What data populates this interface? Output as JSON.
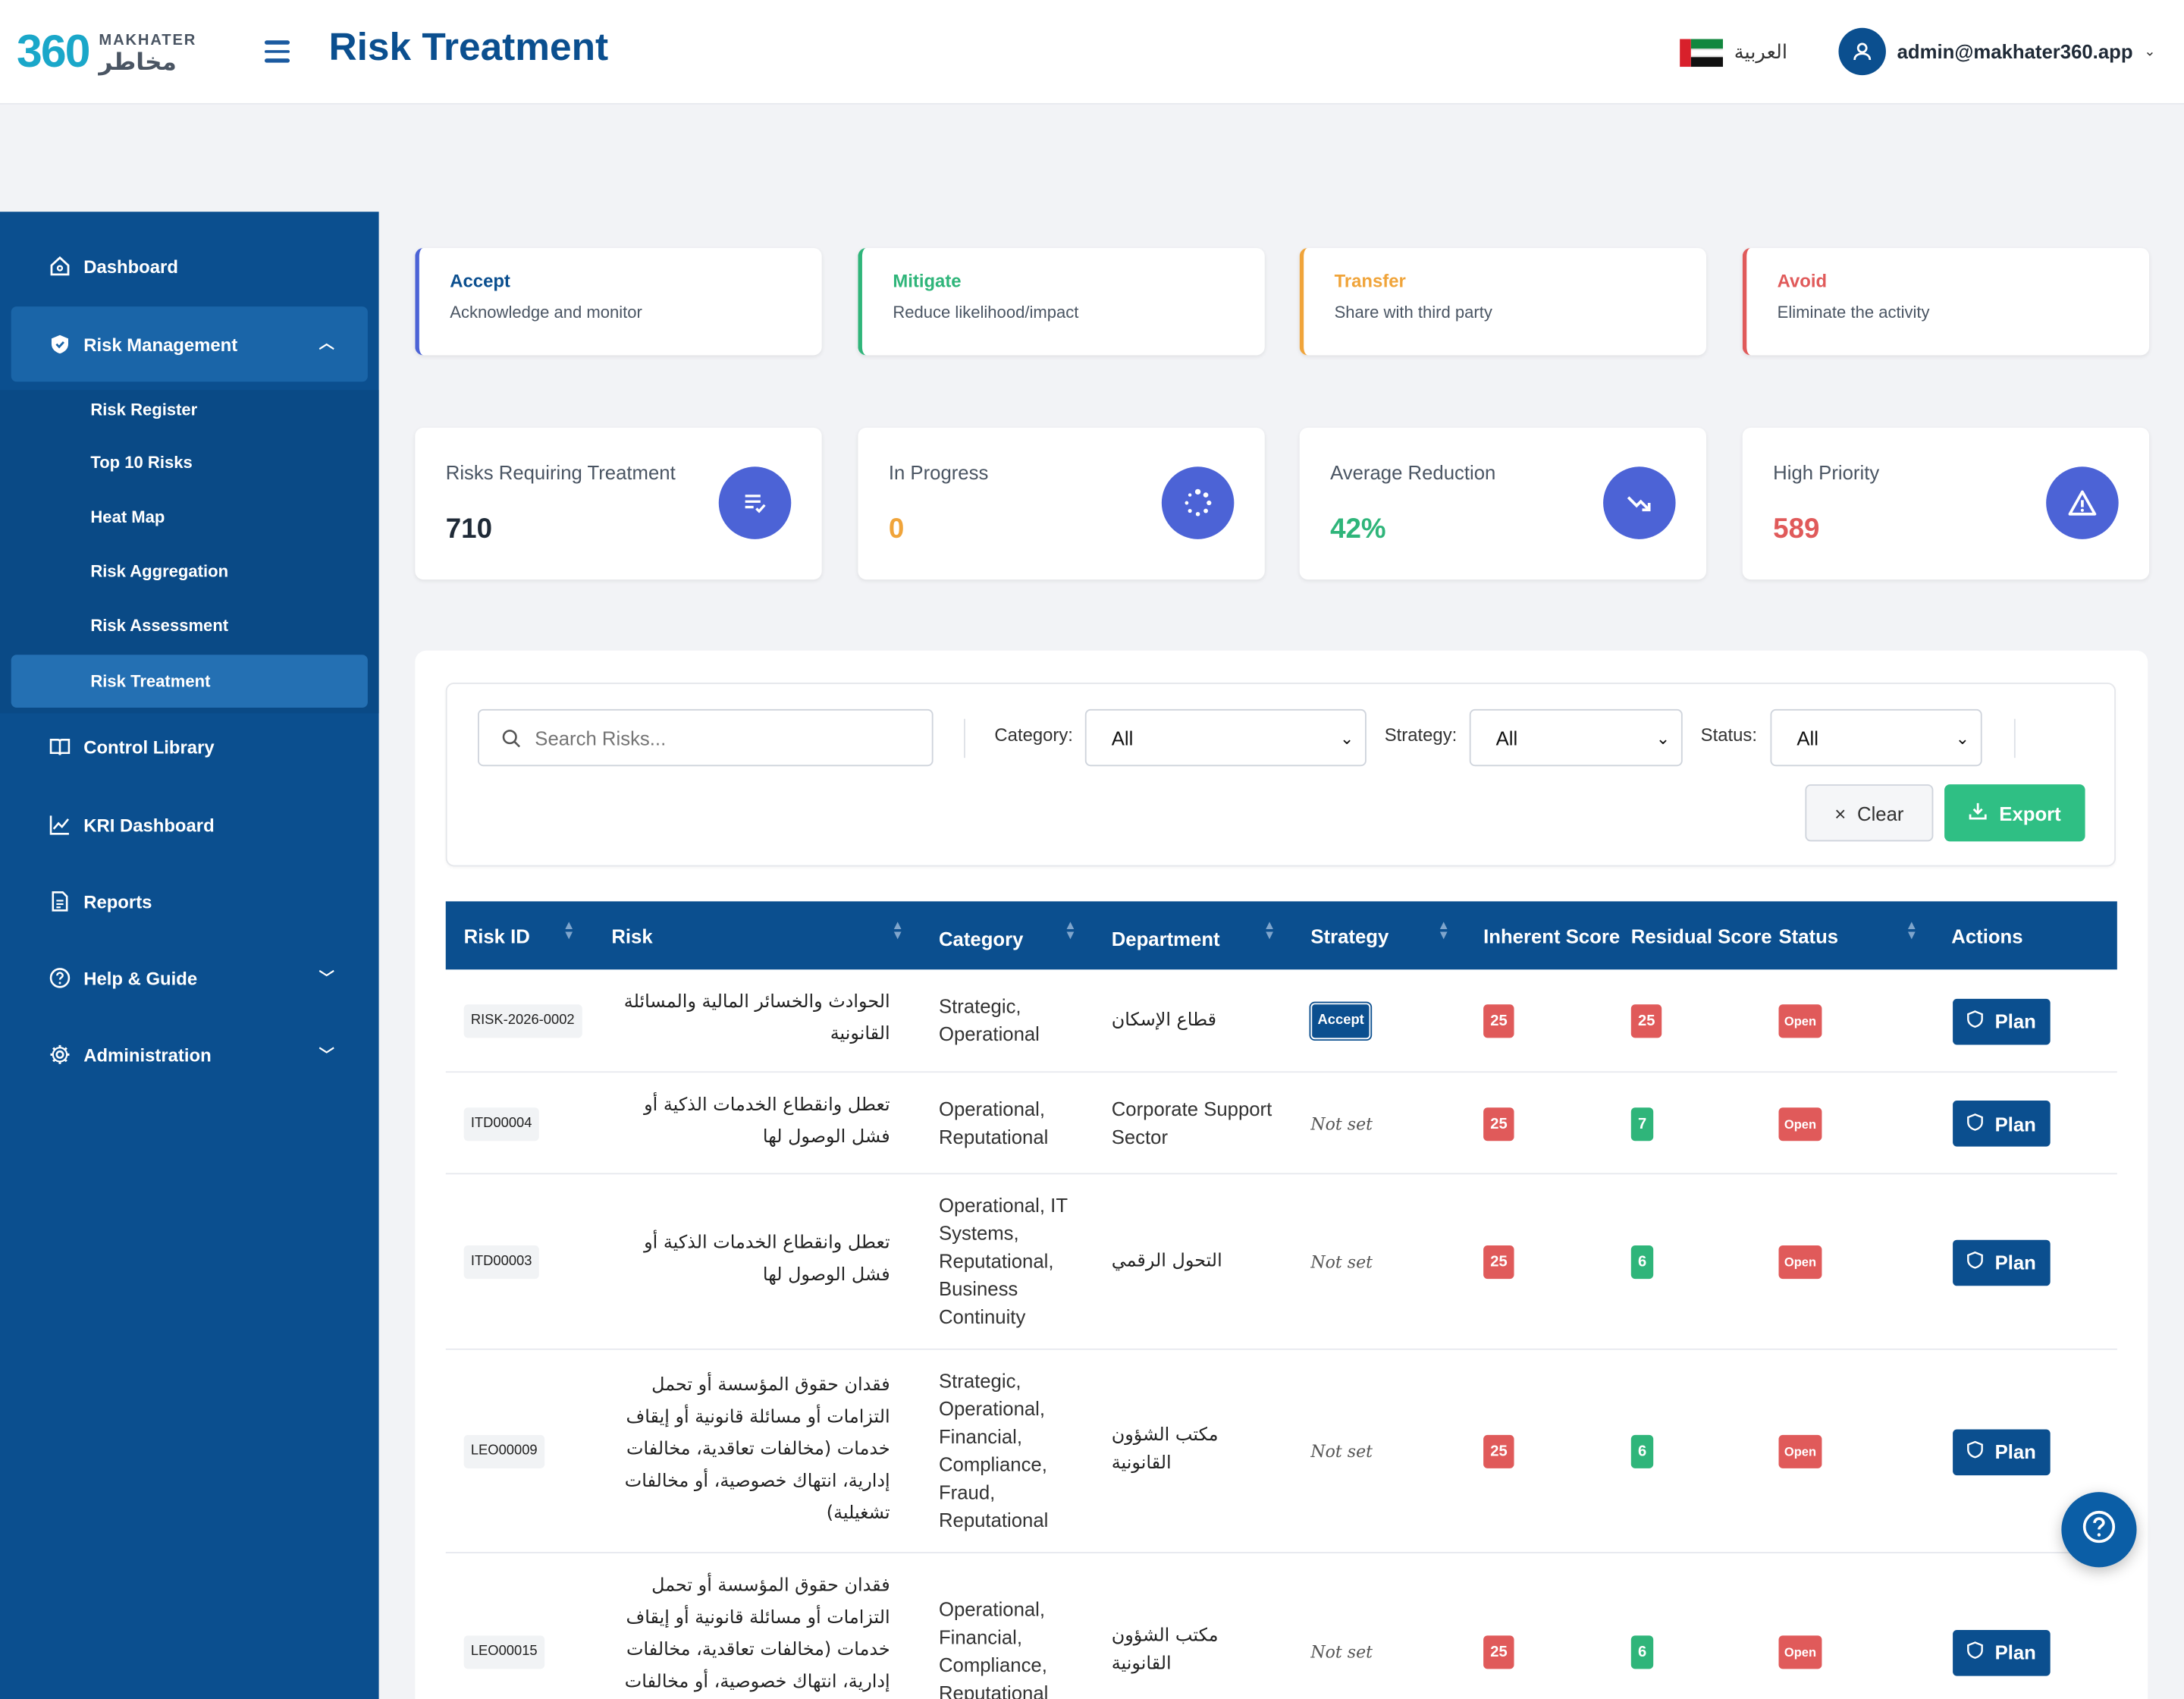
{
  "header": {
    "logo_number": "360",
    "logo_word": "MAKHATER",
    "logo_arabic": "مخاطر",
    "page_title": "Risk Treatment",
    "language": "العربية",
    "user_email": "admin@makhater360.app"
  },
  "sidebar": {
    "items": [
      {
        "label": "Dashboard",
        "icon": "home-icon"
      },
      {
        "label": "Risk Management",
        "icon": "shield-icon"
      },
      {
        "label": "Control Library",
        "icon": "book-icon"
      },
      {
        "label": "KRI Dashboard",
        "icon": "chart-line-icon"
      },
      {
        "label": "Reports",
        "icon": "document-icon"
      },
      {
        "label": "Help & Guide",
        "icon": "help-circle-icon"
      },
      {
        "label": "Administration",
        "icon": "gear-icon"
      }
    ],
    "sub_items": [
      "Risk Register",
      "Top 10 Risks",
      "Heat Map",
      "Risk Aggregation",
      "Risk Assessment",
      "Risk Treatment"
    ]
  },
  "strategies": [
    {
      "title": "Accept",
      "desc": "Acknowledge and monitor",
      "color": "#4c63d6"
    },
    {
      "title": "Mitigate",
      "desc": "Reduce likelihood/impact",
      "color": "#2fb57a"
    },
    {
      "title": "Transfer",
      "desc": "Share with third party",
      "color": "#f0a43a"
    },
    {
      "title": "Avoid",
      "desc": "Eliminate the activity",
      "color": "#e05a5a"
    }
  ],
  "stats": [
    {
      "label": "Risks Requiring Treatment",
      "value": "710",
      "color": "#1f2a37",
      "icon": "list-check-icon"
    },
    {
      "label": "In Progress",
      "value": "0",
      "color": "#f0a43a",
      "icon": "spinner-icon"
    },
    {
      "label": "Average Reduction",
      "value": "42%",
      "color": "#2fb57a",
      "icon": "trend-down-icon"
    },
    {
      "label": "High Priority",
      "value": "589",
      "color": "#e05a5a",
      "icon": "warning-icon"
    }
  ],
  "filters": {
    "search_placeholder": "Search Risks...",
    "category_label": "Category:",
    "category_value": "All",
    "strategy_label": "Strategy:",
    "strategy_value": "All",
    "status_label": "Status:",
    "status_value": "All",
    "clear_label": "Clear",
    "export_label": "Export"
  },
  "table": {
    "columns": [
      "Risk ID",
      "Risk",
      "Category",
      "Department",
      "Strategy",
      "Inherent Score",
      "Residual Score",
      "Status",
      "Actions"
    ],
    "rows": [
      {
        "id": "RISK-2026-0002",
        "risk": "الحوادث والخسائر المالية والمسائلة القانونية",
        "category": "Strategic, Operational",
        "department": "قطاع الإسكان",
        "strategy": "Accept",
        "inherent": "25",
        "residual": "25",
        "status": "Open",
        "action": "Plan"
      },
      {
        "id": "ITD00004",
        "risk": "تعطل وانقطاع الخدمات الذكية أو فشل الوصول لها",
        "category": "Operational, Reputational",
        "department": "Corporate Support Sector",
        "strategy": "Not set",
        "inherent": "25",
        "residual": "7",
        "status": "Open",
        "action": "Plan"
      },
      {
        "id": "ITD00003",
        "risk": "تعطل وانقطاع الخدمات الذكية أو فشل الوصول لها",
        "category": "Operational, IT Systems, Reputational, Business Continuity",
        "department": "التحول الرقمي",
        "strategy": "Not set",
        "inherent": "25",
        "residual": "6",
        "status": "Open",
        "action": "Plan"
      },
      {
        "id": "LEO00009",
        "risk": "فقدان حقوق المؤسسة أو تحمل التزامات أو مسائلة قانونية أو إيقاف خدمات (مخالفات تعاقدية، مخالفات إدارية، انتهاك خصوصية، أو مخالفات تشغيلية)",
        "category": "Strategic, Operational, Financial, Compliance, Fraud, Reputational",
        "department": "مكتب الشؤون القانونية",
        "strategy": "Not set",
        "inherent": "25",
        "residual": "6",
        "status": "Open",
        "action": "Plan"
      },
      {
        "id": "LEO00015",
        "risk": "فقدان حقوق المؤسسة أو تحمل التزامات أو مسائلة قانونية أو إيقاف خدمات (مخالفات تعاقدية، مخالفات إدارية، انتهاك خصوصية، أو مخالفات",
        "category": "Operational, Financial, Compliance, Reputational",
        "department": "مكتب الشؤون القانونية",
        "strategy": "Not set",
        "inherent": "25",
        "residual": "6",
        "status": "Open",
        "action": "Plan"
      }
    ]
  }
}
